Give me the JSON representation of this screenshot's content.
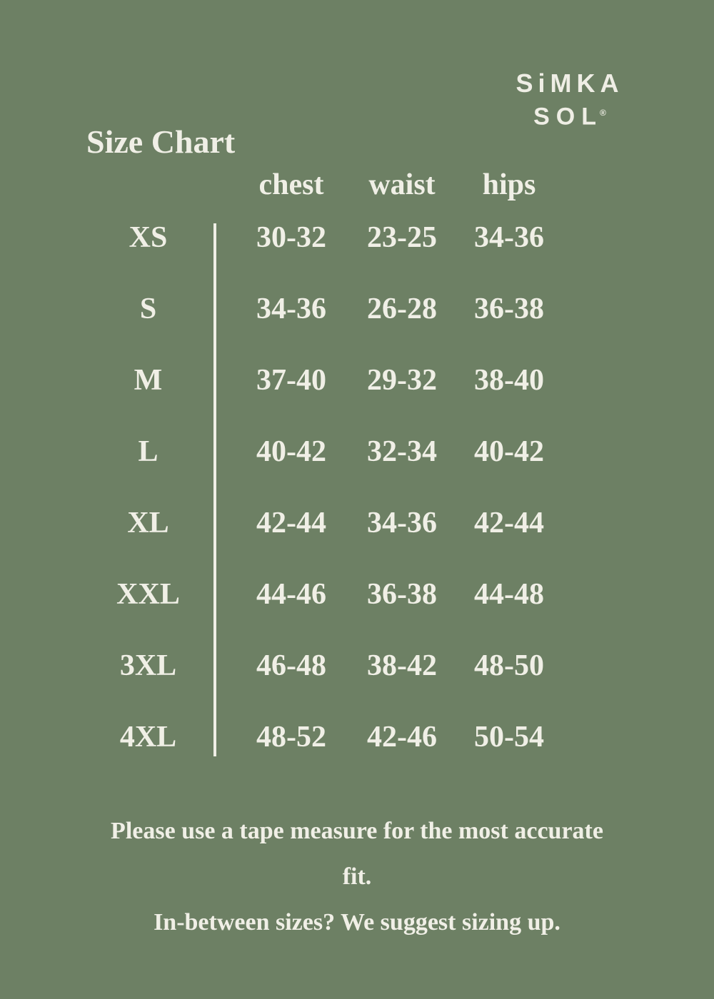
{
  "colors": {
    "background": "#6d8064",
    "text": "#f0efe6"
  },
  "logo": {
    "line1": "SiMKA",
    "line2": "SOL",
    "registered_mark": "®"
  },
  "title": "Size Chart",
  "table": {
    "column_headers": [
      "chest",
      "waist",
      "hips"
    ],
    "rows": [
      {
        "size": "XS",
        "chest": "30-32",
        "waist": "23-25",
        "hips": "34-36"
      },
      {
        "size": "S",
        "chest": "34-36",
        "waist": "26-28",
        "hips": "36-38"
      },
      {
        "size": "M",
        "chest": "37-40",
        "waist": "29-32",
        "hips": "38-40"
      },
      {
        "size": "L",
        "chest": "40-42",
        "waist": "32-34",
        "hips": "40-42"
      },
      {
        "size": "XL",
        "chest": "42-44",
        "waist": "34-36",
        "hips": "42-44"
      },
      {
        "size": "XXL",
        "chest": "44-46",
        "waist": "36-38",
        "hips": "44-48"
      },
      {
        "size": "3XL",
        "chest": "46-48",
        "waist": "38-42",
        "hips": "48-50"
      },
      {
        "size": "4XL",
        "chest": "48-52",
        "waist": "42-46",
        "hips": "50-54"
      }
    ]
  },
  "footer": {
    "line1": "Please use a tape measure for the most accurate fit.",
    "line2": "In-between sizes? We suggest sizing up."
  },
  "chart_data": {
    "type": "table",
    "title": "Size Chart",
    "columns": [
      "size",
      "chest",
      "waist",
      "hips"
    ],
    "rows": [
      [
        "XS",
        "30-32",
        "23-25",
        "34-36"
      ],
      [
        "S",
        "34-36",
        "26-28",
        "36-38"
      ],
      [
        "M",
        "37-40",
        "29-32",
        "38-40"
      ],
      [
        "L",
        "40-42",
        "32-34",
        "40-42"
      ],
      [
        "XL",
        "42-44",
        "34-36",
        "42-44"
      ],
      [
        "XXL",
        "44-46",
        "36-38",
        "44-48"
      ],
      [
        "3XL",
        "46-48",
        "38-42",
        "48-50"
      ],
      [
        "4XL",
        "48-52",
        "42-46",
        "50-54"
      ]
    ]
  }
}
